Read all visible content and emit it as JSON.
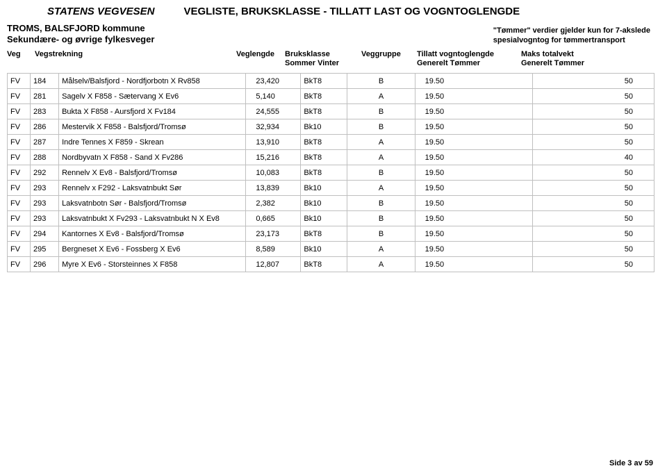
{
  "header": {
    "agency": "STATENS VEGVESEN",
    "doc_title": "VEGLISTE,  BRUKSKLASSE - TILLATT LAST OG VOGNTOGLENGDE",
    "region_line1": "TROMS, BALSFJORD kommune",
    "region_line2": "Sekundære- og øvrige fylkesveger",
    "note_line1": "\"Tømmer\" verdier gjelder kun for 7-akslede",
    "note_line2": "spesialvogntog for tømmertransport"
  },
  "columns": {
    "veg": "Veg",
    "strekning": "Vegstrekning",
    "lengde": "Veglengde",
    "bruksklasse": "Bruksklasse",
    "bruks_sub": "Sommer   Vinter",
    "gruppe": "Veggruppe",
    "tillatt": "Tillatt vogntoglengde",
    "tillatt_sub": "Generelt        Tømmer",
    "maks": "Maks totalvekt",
    "maks_sub": "Generelt Tømmer"
  },
  "rows": [
    {
      "t": "FV",
      "n": "184",
      "d": "Målselv/Balsfjord - Nordfjorbotn X Rv858",
      "len": "23,420",
      "cls": "BkT8",
      "grp": "B",
      "lim": "19.50",
      "max": "50"
    },
    {
      "t": "FV",
      "n": "281",
      "d": "Sagelv X F858 - Sætervang X Ev6",
      "len": "5,140",
      "cls": "BkT8",
      "grp": "A",
      "lim": "19.50",
      "max": "50"
    },
    {
      "t": "FV",
      "n": "283",
      "d": "Bukta X F858 - Aursfjord X Fv184",
      "len": "24,555",
      "cls": "BkT8",
      "grp": "B",
      "lim": "19.50",
      "max": "50"
    },
    {
      "t": "FV",
      "n": "286",
      "d": "Mestervik X F858 - Balsfjord/Tromsø",
      "len": "32,934",
      "cls": "Bk10",
      "grp": "B",
      "lim": "19.50",
      "max": "50"
    },
    {
      "t": "FV",
      "n": "287",
      "d": "Indre Tennes X F859 - Skrean",
      "len": "13,910",
      "cls": "BkT8",
      "grp": "A",
      "lim": "19.50",
      "max": "50"
    },
    {
      "t": "FV",
      "n": "288",
      "d": "Nordbyvatn X F858 - Sand X Fv286",
      "len": "15,216",
      "cls": "BkT8",
      "grp": "A",
      "lim": "19.50",
      "max": "40"
    },
    {
      "t": "FV",
      "n": "292",
      "d": "Rennelv X Ev8 - Balsfjord/Tromsø",
      "len": "10,083",
      "cls": "BkT8",
      "grp": "B",
      "lim": "19.50",
      "max": "50"
    },
    {
      "t": "FV",
      "n": "293",
      "d": "Rennelv x F292 - Laksvatnbukt Sør",
      "len": "13,839",
      "cls": "Bk10",
      "grp": "A",
      "lim": "19.50",
      "max": "50"
    },
    {
      "t": "FV",
      "n": "293",
      "d": "Laksvatnbotn Sør - Balsfjord/Tromsø",
      "len": "2,382",
      "cls": "Bk10",
      "grp": "B",
      "lim": "19.50",
      "max": "50"
    },
    {
      "t": "FV",
      "n": "293",
      "d": "Laksvatnbukt X Fv293 - Laksvatnbukt N X Ev8",
      "len": "0,665",
      "cls": "Bk10",
      "grp": "B",
      "lim": "19.50",
      "max": "50"
    },
    {
      "t": "FV",
      "n": "294",
      "d": "Kantornes X Ev8 - Balsfjord/Tromsø",
      "len": "23,173",
      "cls": "BkT8",
      "grp": "B",
      "lim": "19.50",
      "max": "50"
    },
    {
      "t": "FV",
      "n": "295",
      "d": "Bergneset X Ev6 - Fossberg X Ev6",
      "len": "8,589",
      "cls": "Bk10",
      "grp": "A",
      "lim": "19.50",
      "max": "50"
    },
    {
      "t": "FV",
      "n": "296",
      "d": "Myre X Ev6 - Storsteinnes X F858",
      "len": "12,807",
      "cls": "BkT8",
      "grp": "A",
      "lim": "19.50",
      "max": "50"
    }
  ],
  "footer": "Side 3 av 59",
  "style": {
    "border_color": "#bfbfbf",
    "text_color": "#000000",
    "background": "#ffffff"
  }
}
